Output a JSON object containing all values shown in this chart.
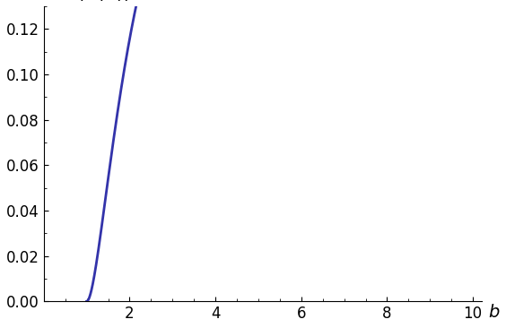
{
  "xlabel": "b",
  "xmin": 0,
  "xmax": 10,
  "ymin": 0,
  "ymax": 0.13,
  "xticks": [
    2,
    4,
    6,
    8,
    10
  ],
  "yticks": [
    0.0,
    0.02,
    0.04,
    0.06,
    0.08,
    0.1,
    0.12
  ],
  "line_color": "#3333aa",
  "line_width": 2.0,
  "background_color": "#ffffff",
  "title_fontsize": 15,
  "tick_fontsize": 12,
  "label_fontsize": 14
}
